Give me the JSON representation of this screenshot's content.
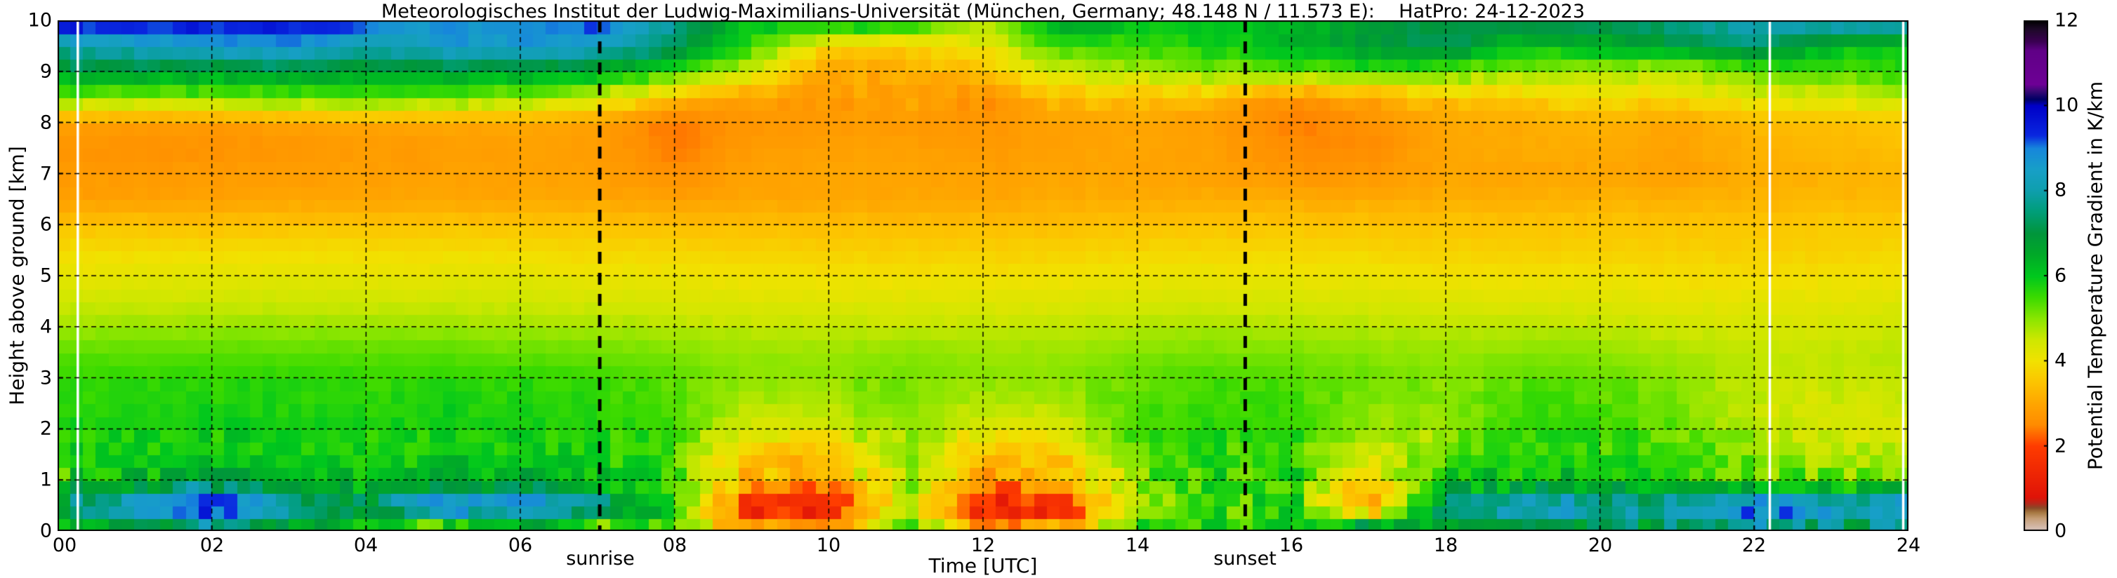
{
  "title": "Meteorologisches Institut der Ludwig-Maximilians-Universität (München, Germany; 48.148 N / 11.573 E):    HatPro: 24-12-2023",
  "axes": {
    "x": {
      "label": "Time [UTC]",
      "tick_labels": [
        "00",
        "02",
        "04",
        "06",
        "08",
        "10",
        "12",
        "14",
        "16",
        "18",
        "20",
        "22",
        "24"
      ],
      "tick_hours": [
        0,
        2,
        4,
        6,
        8,
        10,
        12,
        14,
        16,
        18,
        20,
        22,
        24
      ]
    },
    "y": {
      "label": "Height above ground [km]",
      "tick_labels": [
        "0",
        "1",
        "2",
        "3",
        "4",
        "5",
        "6",
        "7",
        "8",
        "9",
        "10"
      ],
      "tick_km": [
        0,
        1,
        2,
        3,
        4,
        5,
        6,
        7,
        8,
        9,
        10
      ]
    }
  },
  "colorbar": {
    "label": "Potential Temperature Gradient in K/km",
    "tick_labels": [
      "0",
      "2",
      "4",
      "6",
      "8",
      "10",
      "12"
    ],
    "tick_values": [
      0,
      2,
      4,
      6,
      8,
      10,
      12
    ],
    "range": [
      0,
      12
    ]
  },
  "annotations": {
    "sunrise_label": "sunrise",
    "sunset_label": "sunset",
    "sunrise_utc": 7.03,
    "sunset_utc": 15.4
  },
  "chart_data": {
    "type": "heatmap",
    "title": "Potential temperature gradient, HatPro microwave radiometer, Munich, 24-12-2023",
    "xlabel": "Time [UTC]",
    "ylabel": "Height above ground [km]",
    "xlim": [
      0,
      24
    ],
    "ylim": [
      0,
      10
    ],
    "value_unit": "K/km",
    "value_range": [
      0,
      12
    ],
    "grid": "dashed, 2 h vertical / 1 km horizontal",
    "legend_position": "colorbar right",
    "x_hours": [
      0,
      1,
      2,
      3,
      4,
      5,
      6,
      7,
      8,
      9,
      10,
      11,
      12,
      13,
      14,
      15,
      16,
      17,
      18,
      19,
      20,
      21,
      22,
      23,
      24
    ],
    "y_km": [
      0,
      0.5,
      1,
      1.5,
      2,
      2.5,
      3,
      3.5,
      4,
      4.5,
      5,
      5.5,
      6,
      6.5,
      7,
      7.5,
      8,
      8.5,
      9,
      9.5,
      10
    ],
    "values_rows_bottom_to_top": [
      [
        6.5,
        6.0,
        7.0,
        6.2,
        5.8,
        4.2,
        5.5,
        4.5,
        5.5,
        3.0,
        2.6,
        6.0,
        3.0,
        3.4,
        5.8,
        6.0,
        5.6,
        7.8,
        6.5,
        6.8,
        6.2,
        7.2,
        7.5,
        7.0,
        7.0
      ],
      [
        7.5,
        8.8,
        10.2,
        8.2,
        7.4,
        9.6,
        9.0,
        7.8,
        6.0,
        1.2,
        1.3,
        5.0,
        1.2,
        1.4,
        5.2,
        5.4,
        5.6,
        2.5,
        7.6,
        8.8,
        8.2,
        8.8,
        9.4,
        8.8,
        9.2
      ],
      [
        5.8,
        6.4,
        6.8,
        6.2,
        6.0,
        6.6,
        6.4,
        6.0,
        5.6,
        2.9,
        3.0,
        5.0,
        2.9,
        3.1,
        5.2,
        5.6,
        5.6,
        3.8,
        5.8,
        6.2,
        5.9,
        5.9,
        5.4,
        5.2,
        5.3
      ],
      [
        5.8,
        5.9,
        6.0,
        5.9,
        5.8,
        6.0,
        5.9,
        5.8,
        5.5,
        3.4,
        3.6,
        5.0,
        3.4,
        3.6,
        5.4,
        5.6,
        5.6,
        4.4,
        5.2,
        5.7,
        5.6,
        5.5,
        5.0,
        4.7,
        4.7
      ],
      [
        5.8,
        5.8,
        5.9,
        5.8,
        5.8,
        5.9,
        5.8,
        5.7,
        5.5,
        4.2,
        4.4,
        5.0,
        4.2,
        4.4,
        5.5,
        5.6,
        5.6,
        4.9,
        4.9,
        5.6,
        5.5,
        5.3,
        4.6,
        4.4,
        4.4
      ],
      [
        5.7,
        5.7,
        5.8,
        5.7,
        5.7,
        5.8,
        5.7,
        5.6,
        5.4,
        4.7,
        4.8,
        5.2,
        4.7,
        4.8,
        5.4,
        5.5,
        5.5,
        5.1,
        5.0,
        5.5,
        5.4,
        5.1,
        4.5,
        4.4,
        4.4
      ],
      [
        5.6,
        5.6,
        5.6,
        5.6,
        5.6,
        5.6,
        5.6,
        5.5,
        5.3,
        5.0,
        5.0,
        5.2,
        5.0,
        5.0,
        5.3,
        5.4,
        5.3,
        5.2,
        5.0,
        5.3,
        5.2,
        5.0,
        4.6,
        4.6,
        4.6
      ],
      [
        5.3,
        5.3,
        5.3,
        5.3,
        5.3,
        5.3,
        5.2,
        5.2,
        5.1,
        4.9,
        4.9,
        5.0,
        4.9,
        4.9,
        5.1,
        5.1,
        5.1,
        5.0,
        4.9,
        5.0,
        5.0,
        4.8,
        4.6,
        4.6,
        4.7
      ],
      [
        4.9,
        4.9,
        4.9,
        4.9,
        4.9,
        4.9,
        4.8,
        4.8,
        4.7,
        4.6,
        4.6,
        4.6,
        4.6,
        4.6,
        4.7,
        4.8,
        4.7,
        4.7,
        4.6,
        4.7,
        4.6,
        4.5,
        4.4,
        4.4,
        4.5
      ],
      [
        4.5,
        4.5,
        4.5,
        4.5,
        4.5,
        4.5,
        4.5,
        4.4,
        4.4,
        4.3,
        4.3,
        4.3,
        4.3,
        4.3,
        4.4,
        4.4,
        4.4,
        4.4,
        4.3,
        4.3,
        4.3,
        4.2,
        4.2,
        4.2,
        4.3
      ],
      [
        4.2,
        4.2,
        4.2,
        4.2,
        4.2,
        4.2,
        4.2,
        4.1,
        4.1,
        4.0,
        4.0,
        4.0,
        4.0,
        4.0,
        4.1,
        4.1,
        4.1,
        4.1,
        4.0,
        4.0,
        4.0,
        3.9,
        3.9,
        4.0,
        4.0
      ],
      [
        3.9,
        3.9,
        3.9,
        3.9,
        3.9,
        3.9,
        3.9,
        3.8,
        3.8,
        3.7,
        3.7,
        3.7,
        3.7,
        3.7,
        3.8,
        3.8,
        3.8,
        3.8,
        3.7,
        3.7,
        3.7,
        3.7,
        3.7,
        3.7,
        3.8
      ],
      [
        3.5,
        3.5,
        3.4,
        3.5,
        3.5,
        3.5,
        3.5,
        3.5,
        3.4,
        3.4,
        3.4,
        3.4,
        3.4,
        3.4,
        3.5,
        3.5,
        3.5,
        3.5,
        3.5,
        3.5,
        3.5,
        3.5,
        3.5,
        3.6,
        3.6
      ],
      [
        2.9,
        2.9,
        2.9,
        3.0,
        3.0,
        3.0,
        3.0,
        3.0,
        2.9,
        3.0,
        3.0,
        3.0,
        3.0,
        3.1,
        3.1,
        3.1,
        3.1,
        3.1,
        3.1,
        3.2,
        3.2,
        3.2,
        3.2,
        3.3,
        3.3
      ],
      [
        2.8,
        2.8,
        2.8,
        2.8,
        2.9,
        2.9,
        2.9,
        2.9,
        2.6,
        2.9,
        3.0,
        3.0,
        2.9,
        3.0,
        3.0,
        2.9,
        2.7,
        2.7,
        3.0,
        3.0,
        3.0,
        2.9,
        3.1,
        3.2,
        3.2
      ],
      [
        2.7,
        2.6,
        2.6,
        2.7,
        2.8,
        2.8,
        2.9,
        2.8,
        2.4,
        2.8,
        2.9,
        2.9,
        2.8,
        2.9,
        3.0,
        2.9,
        2.5,
        2.5,
        3.0,
        3.1,
        3.1,
        2.9,
        3.2,
        3.3,
        3.4
      ],
      [
        2.9,
        2.8,
        2.8,
        2.9,
        3.0,
        3.0,
        3.0,
        2.9,
        2.3,
        2.7,
        2.8,
        2.8,
        2.7,
        2.9,
        3.0,
        2.8,
        2.4,
        2.6,
        3.0,
        3.1,
        3.2,
        3.0,
        3.3,
        3.4,
        3.5
      ],
      [
        5.2,
        5.0,
        5.0,
        5.2,
        5.4,
        5.2,
        5.0,
        4.4,
        3.4,
        2.8,
        2.9,
        3.0,
        2.6,
        3.4,
        3.5,
        3.3,
        2.5,
        3.0,
        3.4,
        3.6,
        3.8,
        3.9,
        4.2,
        4.4,
        4.6
      ],
      [
        6.8,
        6.8,
        6.6,
        6.8,
        6.6,
        6.8,
        6.6,
        6.4,
        5.6,
        4.4,
        3.0,
        3.2,
        3.4,
        4.6,
        4.8,
        5.0,
        5.2,
        5.4,
        5.2,
        5.0,
        4.8,
        4.6,
        5.2,
        5.4,
        5.6
      ],
      [
        8.0,
        8.2,
        8.5,
        8.8,
        8.0,
        8.6,
        8.6,
        8.4,
        7.4,
        5.5,
        3.8,
        3.5,
        4.2,
        5.5,
        5.6,
        5.8,
        6.2,
        7.0,
        7.2,
        6.0,
        6.2,
        6.8,
        7.4,
        6.2,
        5.8
      ],
      [
        10.0,
        9.8,
        9.6,
        9.6,
        9.3,
        8.8,
        8.8,
        9.3,
        7.8,
        6.0,
        6.5,
        6.2,
        4.8,
        6.8,
        6.2,
        6.0,
        6.3,
        6.8,
        7.0,
        7.6,
        7.4,
        7.8,
        8.2,
        8.4,
        8.6
      ]
    ],
    "missing_data_times_utc": [
      0.26,
      22.2,
      23.93
    ],
    "sunrise_utc": 7.03,
    "sunset_utc": 15.4,
    "colormap_stops": [
      [
        0.0,
        "#dcc8c4"
      ],
      [
        0.3,
        "#c69f77"
      ],
      [
        0.45,
        "#a5763f"
      ],
      [
        0.55,
        "#8a4a28"
      ],
      [
        0.65,
        "#b52a1c"
      ],
      [
        0.8,
        "#e01408"
      ],
      [
        2.0,
        "#ff3c00"
      ],
      [
        2.5,
        "#ff8c00"
      ],
      [
        3.0,
        "#ffa600"
      ],
      [
        3.5,
        "#fdc500"
      ],
      [
        4.0,
        "#f2e200"
      ],
      [
        4.5,
        "#cfe800"
      ],
      [
        5.0,
        "#8ae600"
      ],
      [
        5.5,
        "#3bdb00"
      ],
      [
        6.0,
        "#00c81e"
      ],
      [
        6.5,
        "#00aa28"
      ],
      [
        7.0,
        "#00963c"
      ],
      [
        7.5,
        "#009e78"
      ],
      [
        8.0,
        "#0f9fae"
      ],
      [
        8.5,
        "#18a0c8"
      ],
      [
        9.0,
        "#1787dc"
      ],
      [
        9.3,
        "#0a28e0"
      ],
      [
        10.0,
        "#0000c8"
      ],
      [
        10.15,
        "#000064"
      ],
      [
        10.35,
        "#3c0a78"
      ],
      [
        10.5,
        "#6e0096"
      ],
      [
        11.3,
        "#600087"
      ],
      [
        11.5,
        "#3c0054"
      ],
      [
        11.8,
        "#1e0a28"
      ],
      [
        12.0,
        "#000000"
      ]
    ]
  },
  "colors": {
    "background": "#ffffff",
    "grid_line": "#000000",
    "sun_line": "#000000",
    "missing_data": "#ffffff"
  }
}
